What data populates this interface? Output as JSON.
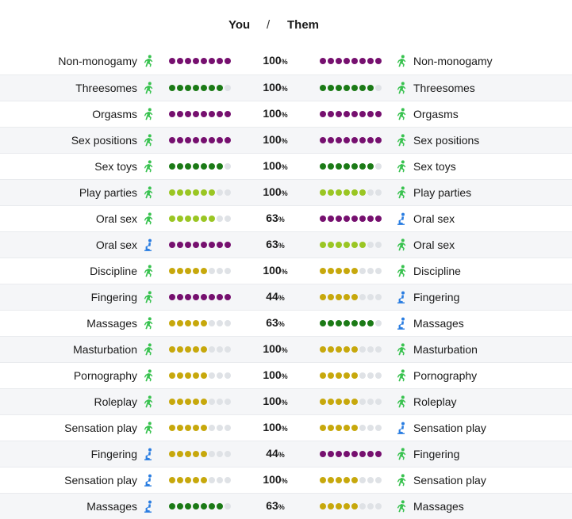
{
  "header": {
    "you_label": "You",
    "separator": "/",
    "them_label": "Them"
  },
  "colors": {
    "purple": "#76106f",
    "darkgreen": "#1b7a16",
    "lime": "#9ac623",
    "gold": "#c7a80c",
    "empty": "#dfe2e6",
    "icon_green": "#38c24f",
    "icon_blue": "#2a7de1"
  },
  "rows": [
    {
      "left_label": "Non-monogamy",
      "left_icon": "green-running-figure-icon",
      "left_dots": 8,
      "left_color": "purple",
      "percent": "100",
      "percent_unit": "%",
      "right_dots": 8,
      "right_color": "purple",
      "right_icon": "green-running-figure-icon",
      "right_label": "Non-monogamy"
    },
    {
      "left_label": "Threesomes",
      "left_icon": "green-running-figure-icon",
      "left_dots": 7,
      "left_color": "darkgreen",
      "percent": "100",
      "percent_unit": "%",
      "right_dots": 7,
      "right_color": "darkgreen",
      "right_icon": "green-running-figure-icon",
      "right_label": "Threesomes"
    },
    {
      "left_label": "Orgasms",
      "left_icon": "green-running-figure-icon",
      "left_dots": 8,
      "left_color": "purple",
      "percent": "100",
      "percent_unit": "%",
      "right_dots": 8,
      "right_color": "purple",
      "right_icon": "green-running-figure-icon",
      "right_label": "Orgasms"
    },
    {
      "left_label": "Sex positions",
      "left_icon": "green-running-figure-icon",
      "left_dots": 8,
      "left_color": "purple",
      "percent": "100",
      "percent_unit": "%",
      "right_dots": 8,
      "right_color": "purple",
      "right_icon": "green-running-figure-icon",
      "right_label": "Sex positions"
    },
    {
      "left_label": "Sex toys",
      "left_icon": "green-running-figure-icon",
      "left_dots": 7,
      "left_color": "darkgreen",
      "percent": "100",
      "percent_unit": "%",
      "right_dots": 7,
      "right_color": "darkgreen",
      "right_icon": "green-running-figure-icon",
      "right_label": "Sex toys"
    },
    {
      "left_label": "Play parties",
      "left_icon": "green-running-figure-icon",
      "left_dots": 6,
      "left_color": "lime",
      "percent": "100",
      "percent_unit": "%",
      "right_dots": 6,
      "right_color": "lime",
      "right_icon": "green-running-figure-icon",
      "right_label": "Play parties"
    },
    {
      "left_label": "Oral sex",
      "left_icon": "green-running-figure-icon",
      "left_dots": 6,
      "left_color": "lime",
      "percent": "63",
      "percent_unit": "%",
      "right_dots": 8,
      "right_color": "purple",
      "right_icon": "blue-kneeling-figure-icon",
      "right_label": "Oral sex"
    },
    {
      "left_label": "Oral sex",
      "left_icon": "blue-kneeling-figure-icon",
      "left_dots": 8,
      "left_color": "purple",
      "percent": "63",
      "percent_unit": "%",
      "right_dots": 6,
      "right_color": "lime",
      "right_icon": "green-running-figure-icon",
      "right_label": "Oral sex"
    },
    {
      "left_label": "Discipline",
      "left_icon": "green-running-figure-icon",
      "left_dots": 5,
      "left_color": "gold",
      "percent": "100",
      "percent_unit": "%",
      "right_dots": 5,
      "right_color": "gold",
      "right_icon": "green-running-figure-icon",
      "right_label": "Discipline"
    },
    {
      "left_label": "Fingering",
      "left_icon": "green-running-figure-icon",
      "left_dots": 8,
      "left_color": "purple",
      "percent": "44",
      "percent_unit": "%",
      "right_dots": 5,
      "right_color": "gold",
      "right_icon": "blue-kneeling-figure-icon",
      "right_label": "Fingering"
    },
    {
      "left_label": "Massages",
      "left_icon": "green-running-figure-icon",
      "left_dots": 5,
      "left_color": "gold",
      "percent": "63",
      "percent_unit": "%",
      "right_dots": 7,
      "right_color": "darkgreen",
      "right_icon": "blue-kneeling-figure-icon",
      "right_label": "Massages"
    },
    {
      "left_label": "Masturbation",
      "left_icon": "green-running-figure-icon",
      "left_dots": 5,
      "left_color": "gold",
      "percent": "100",
      "percent_unit": "%",
      "right_dots": 5,
      "right_color": "gold",
      "right_icon": "green-running-figure-icon",
      "right_label": "Masturbation"
    },
    {
      "left_label": "Pornography",
      "left_icon": "green-running-figure-icon",
      "left_dots": 5,
      "left_color": "gold",
      "percent": "100",
      "percent_unit": "%",
      "right_dots": 5,
      "right_color": "gold",
      "right_icon": "green-running-figure-icon",
      "right_label": "Pornography"
    },
    {
      "left_label": "Roleplay",
      "left_icon": "green-running-figure-icon",
      "left_dots": 5,
      "left_color": "gold",
      "percent": "100",
      "percent_unit": "%",
      "right_dots": 5,
      "right_color": "gold",
      "right_icon": "green-running-figure-icon",
      "right_label": "Roleplay"
    },
    {
      "left_label": "Sensation play",
      "left_icon": "green-running-figure-icon",
      "left_dots": 5,
      "left_color": "gold",
      "percent": "100",
      "percent_unit": "%",
      "right_dots": 5,
      "right_color": "gold",
      "right_icon": "blue-kneeling-figure-icon",
      "right_label": "Sensation play"
    },
    {
      "left_label": "Fingering",
      "left_icon": "blue-kneeling-figure-icon",
      "left_dots": 5,
      "left_color": "gold",
      "percent": "44",
      "percent_unit": "%",
      "right_dots": 8,
      "right_color": "purple",
      "right_icon": "green-running-figure-icon",
      "right_label": "Fingering"
    },
    {
      "left_label": "Sensation play",
      "left_icon": "blue-kneeling-figure-icon",
      "left_dots": 5,
      "left_color": "gold",
      "percent": "100",
      "percent_unit": "%",
      "right_dots": 5,
      "right_color": "gold",
      "right_icon": "green-running-figure-icon",
      "right_label": "Sensation play"
    },
    {
      "left_label": "Massages",
      "left_icon": "blue-kneeling-figure-icon",
      "left_dots": 7,
      "left_color": "darkgreen",
      "percent": "63",
      "percent_unit": "%",
      "right_dots": 5,
      "right_color": "gold",
      "right_icon": "green-running-figure-icon",
      "right_label": "Massages"
    }
  ]
}
